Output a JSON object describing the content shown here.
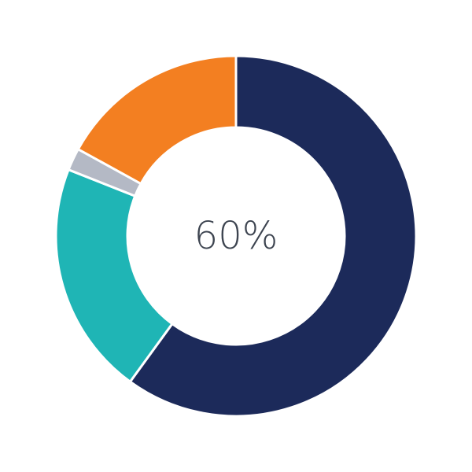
{
  "chart_data": {
    "type": "pie",
    "variant": "donut",
    "center_label": "60%",
    "slices": [
      {
        "value": 60,
        "color": "#1c2a5a"
      },
      {
        "value": 21,
        "color": "#1fb5b5"
      },
      {
        "value": 2,
        "color": "#b4b9c5"
      },
      {
        "value": 17,
        "color": "#f37f21"
      }
    ]
  }
}
